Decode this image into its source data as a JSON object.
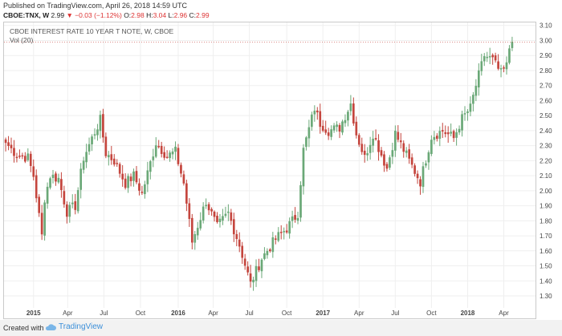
{
  "header": {
    "published": "Published on TradingView.com, April 26, 2018 14:59 UTC",
    "symbol": "CBOE:TNX, W",
    "last": "2.99",
    "change": "▼ −0.03 (−1.12%)",
    "o_label": "O:",
    "o_val": "2.98",
    "h_label": "H:",
    "h_val": "3.04",
    "l_label": "L:",
    "l_val": "2.96",
    "c_label": "C:",
    "c_val": "2.99"
  },
  "legend": {
    "title": "CBOE INTEREST RATE 10 YEAR T NOTE, W, CBOE",
    "vol": "Vol (20)"
  },
  "footer": {
    "created_with": "Created with",
    "brand": "TradingView"
  },
  "colors": {
    "up": "#6aa877",
    "down": "#c4443c",
    "grid": "#efefef",
    "axis_text": "#444444"
  },
  "chart_data": {
    "type": "candlestick",
    "title": "CBOE INTEREST RATE 10 YEAR T NOTE, W, CBOE",
    "ylim": [
      1.22,
      3.12
    ],
    "y_ticks": [
      1.3,
      1.4,
      1.5,
      1.6,
      1.7,
      1.8,
      1.9,
      2.0,
      2.1,
      2.2,
      2.3,
      2.4,
      2.5,
      2.6,
      2.7,
      2.8,
      2.9,
      3.0,
      3.1
    ],
    "x_ticks": [
      {
        "label": "2015",
        "date": "2015-01-05"
      },
      {
        "label": "Apr",
        "date": "2015-04-01"
      },
      {
        "label": "Jul",
        "date": "2015-07-01"
      },
      {
        "label": "Oct",
        "date": "2015-10-01"
      },
      {
        "label": "2016",
        "date": "2016-01-04"
      },
      {
        "label": "Apr",
        "date": "2016-04-01"
      },
      {
        "label": "Jul",
        "date": "2016-07-01"
      },
      {
        "label": "Oct",
        "date": "2016-10-03"
      },
      {
        "label": "2017",
        "date": "2017-01-02"
      },
      {
        "label": "Apr",
        "date": "2017-04-03"
      },
      {
        "label": "Jul",
        "date": "2017-07-03"
      },
      {
        "label": "Oct",
        "date": "2017-10-02"
      },
      {
        "label": "2018",
        "date": "2018-01-01"
      },
      {
        "label": "Apr",
        "date": "2018-04-02"
      }
    ],
    "first_week": "2014-10-27",
    "last_price": 2.99,
    "close_path": [
      {
        "date": "2014-10-27",
        "close": 2.32
      },
      {
        "date": "2014-11-24",
        "close": 2.24
      },
      {
        "date": "2014-12-22",
        "close": 2.22
      },
      {
        "date": "2015-01-05",
        "close": 2.1
      },
      {
        "date": "2015-01-26",
        "close": 1.7
      },
      {
        "date": "2015-02-02",
        "close": 1.95
      },
      {
        "date": "2015-02-16",
        "close": 2.1
      },
      {
        "date": "2015-03-09",
        "close": 2.08
      },
      {
        "date": "2015-03-30",
        "close": 1.86
      },
      {
        "date": "2015-04-20",
        "close": 1.9
      },
      {
        "date": "2015-05-11",
        "close": 2.22
      },
      {
        "date": "2015-06-08",
        "close": 2.39
      },
      {
        "date": "2015-06-22",
        "close": 2.47
      },
      {
        "date": "2015-07-06",
        "close": 2.25
      },
      {
        "date": "2015-07-27",
        "close": 2.2
      },
      {
        "date": "2015-08-24",
        "close": 2.05
      },
      {
        "date": "2015-09-14",
        "close": 2.1
      },
      {
        "date": "2015-10-05",
        "close": 1.98
      },
      {
        "date": "2015-11-09",
        "close": 2.32
      },
      {
        "date": "2015-12-07",
        "close": 2.23
      },
      {
        "date": "2015-12-28",
        "close": 2.26
      },
      {
        "date": "2016-01-18",
        "close": 2.05
      },
      {
        "date": "2016-02-08",
        "close": 1.66
      },
      {
        "date": "2016-03-14",
        "close": 1.93
      },
      {
        "date": "2016-04-11",
        "close": 1.76
      },
      {
        "date": "2016-05-09",
        "close": 1.85
      },
      {
        "date": "2016-06-06",
        "close": 1.64
      },
      {
        "date": "2016-07-04",
        "close": 1.38
      },
      {
        "date": "2016-08-01",
        "close": 1.55
      },
      {
        "date": "2016-09-05",
        "close": 1.68
      },
      {
        "date": "2016-10-03",
        "close": 1.75
      },
      {
        "date": "2016-10-31",
        "close": 1.85
      },
      {
        "date": "2016-11-14",
        "close": 2.27
      },
      {
        "date": "2016-12-12",
        "close": 2.55
      },
      {
        "date": "2016-12-26",
        "close": 2.45
      },
      {
        "date": "2017-01-16",
        "close": 2.4
      },
      {
        "date": "2017-02-13",
        "close": 2.42
      },
      {
        "date": "2017-03-13",
        "close": 2.58
      },
      {
        "date": "2017-03-27",
        "close": 2.38
      },
      {
        "date": "2017-04-17",
        "close": 2.22
      },
      {
        "date": "2017-05-08",
        "close": 2.38
      },
      {
        "date": "2017-06-12",
        "close": 2.15
      },
      {
        "date": "2017-07-03",
        "close": 2.38
      },
      {
        "date": "2017-08-07",
        "close": 2.2
      },
      {
        "date": "2017-09-04",
        "close": 2.06
      },
      {
        "date": "2017-10-02",
        "close": 2.36
      },
      {
        "date": "2017-10-30",
        "close": 2.4
      },
      {
        "date": "2017-11-27",
        "close": 2.35
      },
      {
        "date": "2017-12-18",
        "close": 2.48
      },
      {
        "date": "2018-01-08",
        "close": 2.55
      },
      {
        "date": "2018-01-22",
        "close": 2.7
      },
      {
        "date": "2018-02-12",
        "close": 2.9
      },
      {
        "date": "2018-03-05",
        "close": 2.87
      },
      {
        "date": "2018-03-26",
        "close": 2.78
      },
      {
        "date": "2018-04-09",
        "close": 2.83
      },
      {
        "date": "2018-04-16",
        "close": 2.95
      },
      {
        "date": "2018-04-23",
        "close": 2.99
      }
    ]
  }
}
